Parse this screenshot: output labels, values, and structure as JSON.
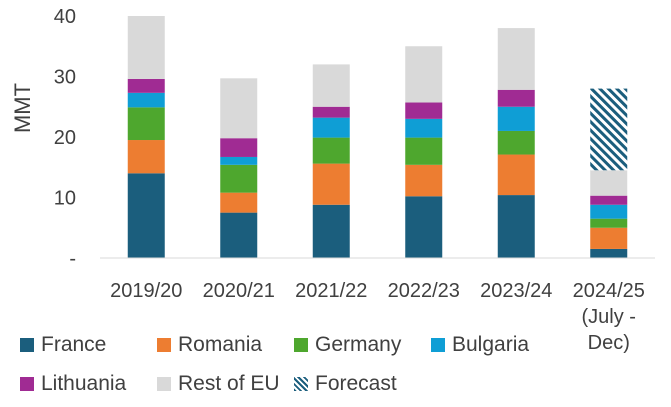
{
  "chart_data": {
    "type": "bar",
    "stacked": true,
    "title": "",
    "xlabel": "",
    "ylabel": "MMT",
    "ylim": [
      0,
      40
    ],
    "yticks": [
      {
        "value": 0,
        "label": "-"
      },
      {
        "value": 10,
        "label": "10"
      },
      {
        "value": 20,
        "label": "20"
      },
      {
        "value": 30,
        "label": "30"
      },
      {
        "value": 40,
        "label": "40"
      }
    ],
    "categories": [
      [
        "2019/20"
      ],
      [
        "2020/21"
      ],
      [
        "2021/22"
      ],
      [
        "2022/23"
      ],
      [
        "2023/24"
      ],
      [
        "2024/25",
        "(July -",
        "Dec)"
      ]
    ],
    "series": [
      {
        "name": "France",
        "color": "#1b5e7d",
        "values": [
          14.0,
          7.5,
          8.8,
          10.2,
          10.4,
          1.5
        ]
      },
      {
        "name": "Romania",
        "color": "#ed7d31",
        "values": [
          5.5,
          3.3,
          6.8,
          5.2,
          6.7,
          3.5
        ]
      },
      {
        "name": "Germany",
        "color": "#4ea72e",
        "values": [
          5.4,
          4.6,
          4.3,
          4.5,
          3.9,
          1.5
        ]
      },
      {
        "name": "Bulgaria",
        "color": "#0f9ed5",
        "values": [
          2.4,
          1.3,
          3.3,
          3.1,
          4.0,
          2.3
        ]
      },
      {
        "name": "Lithuania",
        "color": "#a02b93",
        "values": [
          2.3,
          3.1,
          1.8,
          2.7,
          2.8,
          1.5
        ]
      },
      {
        "name": "Rest of EU",
        "color": "#d9d9d9",
        "values": [
          10.4,
          9.9,
          7.0,
          9.3,
          10.2,
          4.2
        ]
      },
      {
        "name": "Forecast",
        "color": "#1b5e7d",
        "pattern": "diagonal-hatch",
        "values": [
          0,
          0,
          0,
          0,
          0,
          13.5
        ]
      }
    ]
  }
}
